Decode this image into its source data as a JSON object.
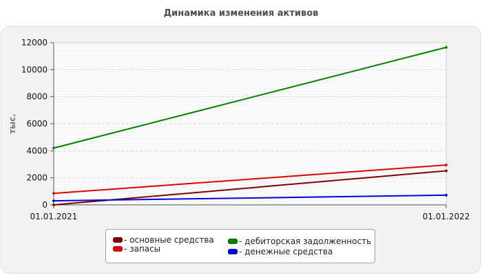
{
  "chart_data": {
    "type": "line",
    "title": "Динамика изменения активов",
    "ylabel": "тыс.",
    "xlabel": "",
    "x": [
      "01.01.2021",
      "01.01.2022"
    ],
    "ylim": [
      0,
      12000
    ],
    "yticks": [
      0,
      2000,
      4000,
      6000,
      8000,
      10000,
      12000
    ],
    "grid": true,
    "legend_position": "bottom",
    "series": [
      {
        "name": "основные средства",
        "color": "#800000",
        "values": [
          0,
          2520
        ]
      },
      {
        "name": "запасы",
        "color": "#e00000",
        "values": [
          850,
          2950
        ]
      },
      {
        "name": "дебиторская задолженность",
        "color": "#008000",
        "values": [
          4200,
          11650
        ]
      },
      {
        "name": "денежные средства",
        "color": "#0000e0",
        "values": [
          300,
          720
        ]
      }
    ]
  }
}
